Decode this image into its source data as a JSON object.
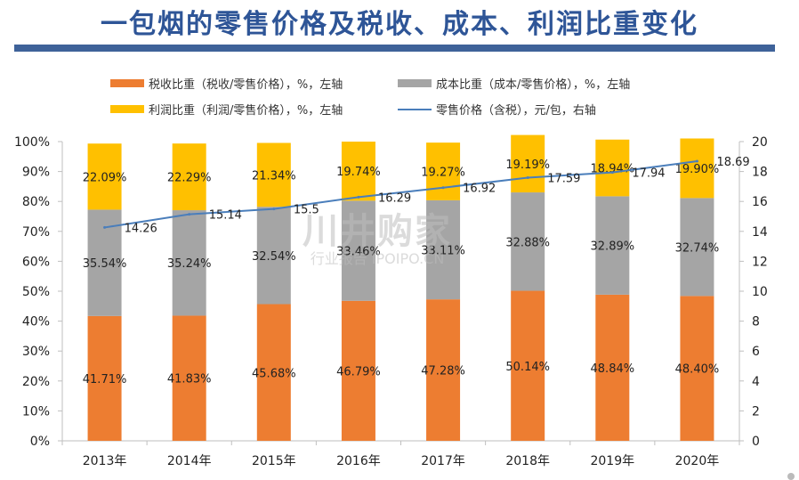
{
  "page": {
    "title": "一包烟的零售价格及税收、成本、利润比重变化",
    "title_color": "#2e5597",
    "rule_color": "#3e6299"
  },
  "legend": [
    {
      "label": "税收比重（税收/零售价格），%，左轴",
      "color": "#ed7d31",
      "kind": "bar"
    },
    {
      "label": "成本比重（成本/零售价格），%，左轴",
      "color": "#a5a5a5",
      "kind": "bar"
    },
    {
      "label": "利润比重（利润/零售价格），%，左轴",
      "color": "#ffc000",
      "kind": "bar"
    },
    {
      "label": "零售价格（含税），元/包，右轴",
      "color": "#4a7ebb",
      "kind": "line"
    }
  ],
  "watermark": {
    "main": "川井购家",
    "sub": "行业报告 IPOIPO.CN"
  },
  "chart_data": {
    "type": "bar",
    "stacked": true,
    "categories": [
      "2013年",
      "2014年",
      "2015年",
      "2016年",
      "2017年",
      "2018年",
      "2019年",
      "2020年"
    ],
    "series": [
      {
        "name": "税收比重（税收/零售价格），%，左轴",
        "axis": "left",
        "color": "#ed7d31",
        "values": [
          41.71,
          41.83,
          45.68,
          46.79,
          47.28,
          50.14,
          48.84,
          48.4
        ],
        "labels": [
          "41.71%",
          "41.83%",
          "45.68%",
          "46.79%",
          "47.28%",
          "50.14%",
          "48.84%",
          "48.40%"
        ]
      },
      {
        "name": "成本比重（成本/零售价格），%，左轴",
        "axis": "left",
        "color": "#a5a5a5",
        "values": [
          35.54,
          35.24,
          32.54,
          33.46,
          33.11,
          32.88,
          32.89,
          32.74
        ],
        "labels": [
          "35.54%",
          "35.24%",
          "32.54%",
          "33.46%",
          "33.11%",
          "32.88%",
          "32.89%",
          "32.74%"
        ]
      },
      {
        "name": "利润比重（利润/零售价格），%，左轴",
        "axis": "left",
        "color": "#ffc000",
        "values": [
          22.09,
          22.29,
          21.34,
          19.74,
          19.27,
          19.19,
          18.94,
          19.9
        ],
        "labels": [
          "22.09%",
          "22.29%",
          "21.34%",
          "19.74%",
          "19.27%",
          "19.19%",
          "18.94%",
          "19.90%"
        ]
      },
      {
        "name": "零售价格（含税），元/包，右轴",
        "type": "line",
        "axis": "right",
        "color": "#4a7ebb",
        "values": [
          14.26,
          15.14,
          15.5,
          16.29,
          16.92,
          17.59,
          17.94,
          18.69
        ],
        "labels": [
          "14.26",
          "15.14",
          "15.5",
          "16.29",
          "16.92",
          "17.59",
          "17.94",
          "18.69"
        ]
      }
    ],
    "y_left": {
      "ylim": [
        0,
        100
      ],
      "ticks": [
        0,
        10,
        20,
        30,
        40,
        50,
        60,
        70,
        80,
        90,
        100
      ],
      "tick_labels": [
        "0%",
        "10%",
        "20%",
        "30%",
        "40%",
        "50%",
        "60%",
        "70%",
        "80%",
        "90%",
        "100%"
      ]
    },
    "y_right": {
      "ylim": [
        0,
        20
      ],
      "ticks": [
        0,
        2,
        4,
        6,
        8,
        10,
        12,
        14,
        16,
        18,
        20
      ],
      "tick_labels": [
        "0",
        "2",
        "4",
        "6",
        "8",
        "10",
        "12",
        "14",
        "16",
        "18",
        "20"
      ]
    },
    "grid": false,
    "legend_position": "top"
  }
}
